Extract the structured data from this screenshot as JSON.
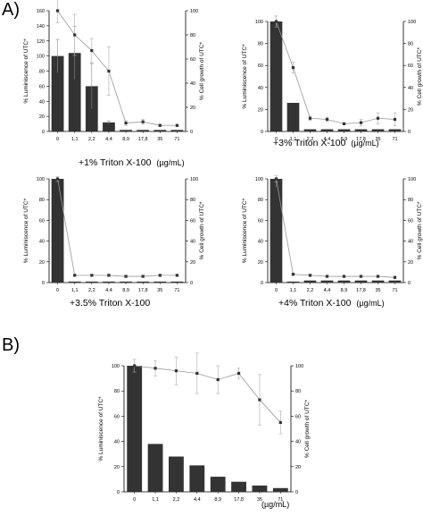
{
  "figure": {
    "panel_a_label": "A)",
    "panel_b_label": "B)"
  },
  "chart_data": [
    {
      "type": "bar",
      "id": "a1",
      "caption": "+1% Triton X-100",
      "unit": "(µg/mL)",
      "categories": [
        "0",
        "1,1",
        "2,2",
        "4,4",
        "8,9",
        "17,8",
        "35",
        "71"
      ],
      "ylabel_left": "% Luminiscence of UTC*",
      "ylabel_right": "% Cell growth of UTC*",
      "ylim_left": [
        0,
        160
      ],
      "yticks_left": [
        0,
        20,
        40,
        60,
        80,
        100,
        120,
        140,
        160
      ],
      "ylim_right": [
        0,
        100
      ],
      "yticks_right": [
        0,
        20,
        40,
        60,
        80,
        100
      ],
      "series": [
        {
          "kind": "bar",
          "axis": "left",
          "values": [
            100,
            104,
            60,
            12,
            2,
            2,
            2,
            2
          ],
          "errors": [
            22,
            35,
            30,
            2,
            0,
            0,
            0,
            0
          ]
        },
        {
          "kind": "line",
          "axis": "right",
          "values": [
            100,
            80,
            67,
            50,
            7,
            8,
            5,
            5
          ],
          "errors": [
            10,
            17,
            10,
            20,
            2,
            2,
            1,
            1
          ]
        }
      ]
    },
    {
      "type": "bar",
      "id": "a2",
      "caption": "+3% Triton X-100",
      "unit": "(µg/mL)",
      "categories": [
        "0",
        "1,1",
        "2,2",
        "4,4",
        "8,9",
        "17,8",
        "35",
        "71"
      ],
      "ylabel_left": "% Luminiscence of UTC*",
      "ylabel_right": "% Cell growth of UTC*",
      "ylim_left": [
        0,
        100
      ],
      "yticks_left": [
        0,
        20,
        40,
        60,
        80,
        100
      ],
      "ylim_right": [
        0,
        100
      ],
      "yticks_right": [
        0,
        20,
        40,
        60,
        80,
        100
      ],
      "series": [
        {
          "kind": "bar",
          "axis": "left",
          "values": [
            100,
            26,
            2,
            2,
            2,
            2,
            2,
            2
          ],
          "errors": [
            4,
            0,
            0,
            0,
            0,
            0,
            0,
            0
          ]
        },
        {
          "kind": "line",
          "axis": "right",
          "values": [
            100,
            58,
            12,
            11,
            7,
            8,
            12,
            11
          ],
          "errors": [
            5,
            5,
            2,
            2,
            1,
            3,
            5,
            6
          ]
        }
      ]
    },
    {
      "type": "bar",
      "id": "a3",
      "caption": "+3.5% Triton X-100",
      "categories": [
        "0",
        "1,1",
        "2,2",
        "4,4",
        "8,9",
        "17,8",
        "35",
        "71"
      ],
      "ylabel_left": "% Luminiscence of UTC*",
      "ylabel_right": "% Cell growth of UTC*",
      "ylim_left": [
        0,
        100
      ],
      "yticks_left": [
        0,
        20,
        40,
        60,
        80,
        100
      ],
      "ylim_right": [
        0,
        100
      ],
      "yticks_right": [
        0,
        20,
        40,
        60,
        80,
        100
      ],
      "series": [
        {
          "kind": "bar",
          "axis": "left",
          "values": [
            100,
            1,
            1,
            1,
            1,
            1,
            1,
            1
          ],
          "errors": [
            1,
            0,
            0,
            0,
            0,
            0,
            0,
            0
          ]
        },
        {
          "kind": "line",
          "axis": "right",
          "values": [
            100,
            7,
            7,
            7,
            6,
            6,
            7,
            7
          ],
          "errors": [
            2,
            1,
            1,
            1,
            1,
            1,
            1,
            1
          ]
        }
      ]
    },
    {
      "type": "bar",
      "id": "a4",
      "caption": "+4% Triton X-100",
      "unit": "(µg/mL)",
      "categories": [
        "0",
        "1,1",
        "2,2",
        "4,4",
        "8,9",
        "17,8",
        "35",
        "71"
      ],
      "ylabel_left": "% Luminiscence of UTC*",
      "ylabel_right": "% Cell growth of UTC*",
      "ylim_left": [
        0,
        100
      ],
      "yticks_left": [
        0,
        20,
        40,
        60,
        80,
        100
      ],
      "ylim_right": [
        0,
        100
      ],
      "yticks_right": [
        0,
        20,
        40,
        60,
        80,
        100
      ],
      "series": [
        {
          "kind": "bar",
          "axis": "left",
          "values": [
            100,
            1,
            2,
            2,
            2,
            2,
            2,
            2
          ],
          "errors": [
            8,
            0,
            0,
            0,
            0,
            0,
            0,
            0
          ]
        },
        {
          "kind": "line",
          "axis": "right",
          "values": [
            100,
            8,
            7,
            6,
            6,
            6,
            6,
            5
          ],
          "errors": [
            3,
            1,
            1,
            1,
            1,
            1,
            1,
            1
          ]
        }
      ]
    },
    {
      "type": "bar",
      "id": "b",
      "unit": "(µg/mL)",
      "categories": [
        "0",
        "1,1",
        "2,2",
        "4,4",
        "8,9",
        "17,8",
        "35",
        "71"
      ],
      "ylabel_left": "% Luminiscence of UTC*",
      "ylabel_right": "% Cell growth of UTC*",
      "ylim_left": [
        0,
        100
      ],
      "yticks_left": [
        0,
        20,
        40,
        60,
        80,
        100
      ],
      "ylim_right": [
        0,
        100
      ],
      "yticks_right": [
        0,
        20,
        40,
        60,
        80,
        100
      ],
      "series": [
        {
          "kind": "bar",
          "axis": "left",
          "values": [
            100,
            38,
            28,
            21,
            12,
            8,
            5,
            3
          ],
          "errors": [
            0,
            0,
            0,
            0,
            0,
            0,
            0,
            0
          ]
        },
        {
          "kind": "line",
          "axis": "right",
          "values": [
            100,
            98,
            96,
            94,
            89,
            94,
            73,
            55
          ],
          "errors": [
            5,
            6,
            11,
            16,
            11,
            4,
            20,
            9
          ]
        }
      ]
    }
  ]
}
